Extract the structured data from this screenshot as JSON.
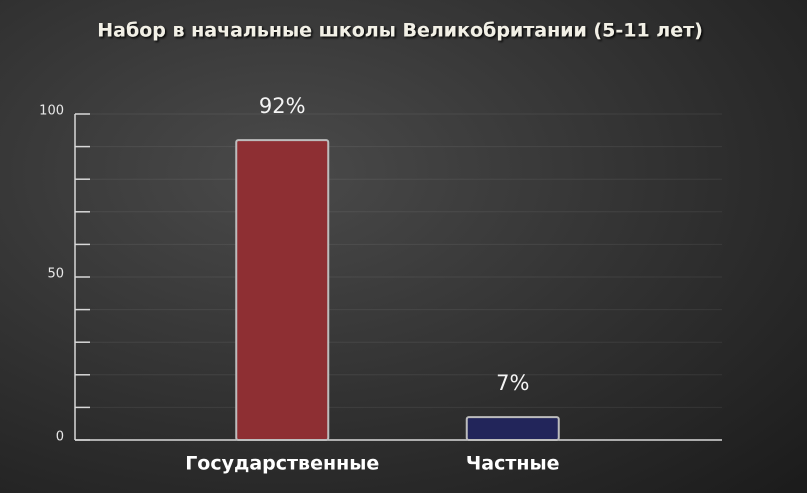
{
  "chart_data": {
    "type": "bar",
    "title": "Набор в начальные школы Великобритании (5-11 лет)",
    "categories": [
      "Государственные",
      "Частные"
    ],
    "values": [
      92,
      7
    ],
    "value_labels": [
      "92%",
      "7%"
    ],
    "colors": [
      "#8e2f33",
      "#22255a"
    ],
    "ylim": [
      0,
      100
    ],
    "yticks": [
      0,
      50,
      100
    ],
    "minor_yticks": [
      10,
      20,
      30,
      40,
      60,
      70,
      80,
      90
    ],
    "grid": true
  }
}
